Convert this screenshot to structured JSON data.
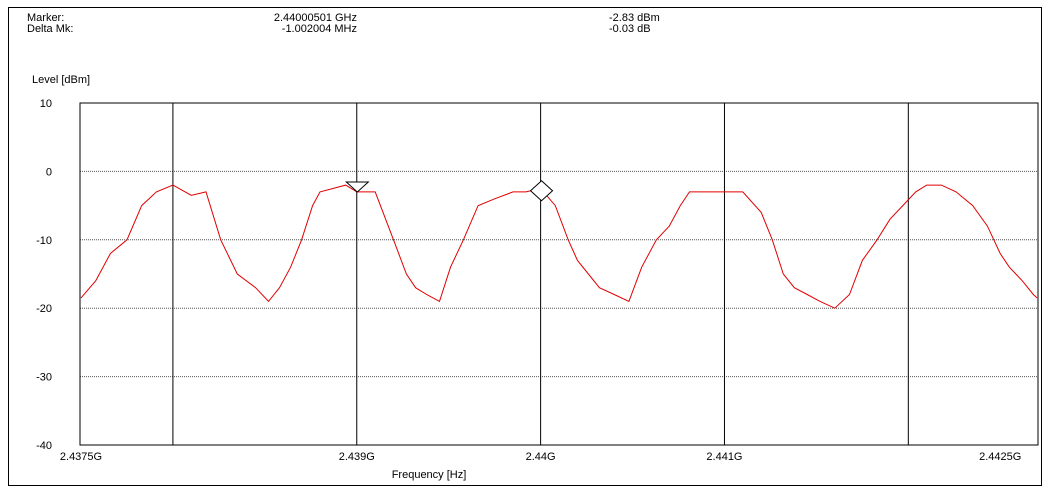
{
  "header": {
    "marker_label": "Marker:",
    "marker_freq": "2.44000501 GHz",
    "marker_level": "-2.83 dBm",
    "delta_label": "Delta Mk:",
    "delta_freq": "-1.002004 MHz",
    "delta_level": "-0.03 dB"
  },
  "chart_data": {
    "type": "line",
    "title": "",
    "ylabel": "Level [dBm]",
    "xlabel": "Frequency [Hz]",
    "xlim": [
      2.4374946,
      2.4427054
    ],
    "ylim": [
      -40,
      10
    ],
    "x_ticks": [
      2.4375,
      2.439,
      2.44,
      2.441,
      2.4425
    ],
    "x_tick_labels": [
      "2.4375G",
      "2.439G",
      "2.44G",
      "2.441G",
      "2.4425G"
    ],
    "x_vertical_gridlines": [
      2.438,
      2.439,
      2.44,
      2.441,
      2.442
    ],
    "y_ticks": [
      10,
      0,
      -10,
      -20,
      -30,
      -40
    ],
    "y_tick_labels": [
      "10",
      "0",
      "-10",
      "-20",
      "-30",
      "-40"
    ],
    "grid": true,
    "markers": [
      {
        "name": "Marker",
        "symbol": "diamond",
        "x": 2.44000501,
        "y": -2.83
      },
      {
        "name": "Delta Mk",
        "symbol": "triangle-down",
        "x": 2.439003006,
        "y": -2.86
      }
    ],
    "series": [
      {
        "color": "#e00000",
        "x": [
          2.4375,
          2.43758,
          2.43766,
          2.43775,
          2.43783,
          2.43791,
          2.438,
          2.4381,
          2.43818,
          2.43826,
          2.43835,
          2.43845,
          2.43852,
          2.43858,
          2.43864,
          2.4387,
          2.43876,
          2.4388,
          2.43887,
          2.43894,
          2.439,
          2.4391,
          2.4392,
          2.43927,
          2.43932,
          2.43938,
          2.43945,
          2.43951,
          2.43958,
          2.43966,
          2.43975,
          2.43985,
          2.43992,
          2.44,
          2.44008,
          2.44015,
          2.4402,
          2.44026,
          2.44032,
          2.4404,
          2.44048,
          2.44055,
          2.44063,
          2.4407,
          2.44076,
          2.44081,
          2.44087,
          2.44094,
          2.441,
          2.4411,
          2.4412,
          2.44126,
          2.44132,
          2.44138,
          2.44145,
          2.44152,
          2.4416,
          2.44168,
          2.44175,
          2.44183,
          2.4419,
          2.44197,
          2.44204,
          2.4421,
          2.44218,
          2.44226,
          2.44235,
          2.44243,
          2.4425,
          2.44255,
          2.44262,
          2.44268,
          2.4427
        ],
        "y": [
          -18.5,
          -16,
          -12,
          -10,
          -5,
          -3,
          -2,
          -3.5,
          -3,
          -10,
          -15,
          -17,
          -19,
          -17,
          -14,
          -10,
          -5,
          -3,
          -2.5,
          -2,
          -3,
          -3,
          -10,
          -15,
          -17,
          -18,
          -19,
          -14,
          -10,
          -5,
          -4,
          -3,
          -3,
          -2.5,
          -5,
          -10,
          -13,
          -15,
          -17,
          -18,
          -19,
          -14,
          -10,
          -8,
          -5,
          -3,
          -3,
          -3,
          -3,
          -3,
          -6,
          -10,
          -15,
          -17,
          -18,
          -19,
          -20,
          -18,
          -13,
          -10,
          -7,
          -5,
          -3,
          -2,
          -2,
          -3,
          -5,
          -8,
          -12,
          -14,
          -16,
          -18,
          -18.5
        ]
      }
    ]
  }
}
